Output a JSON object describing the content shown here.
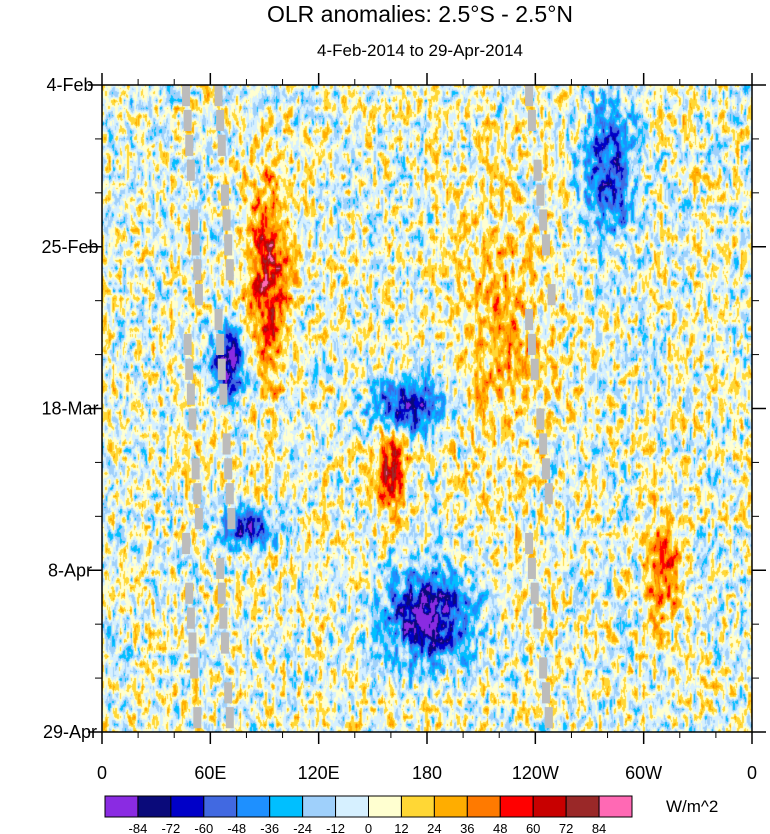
{
  "chart_data": {
    "type": "heatmap",
    "title": "OLR anomalies: 2.5°S - 2.5°N",
    "subtitle": "4-Feb-2014 to 29-Apr-2014",
    "x_tick_labels": [
      "0",
      "60E",
      "120E",
      "180",
      "120W",
      "60W",
      "0"
    ],
    "x_ticks_deg_east": [
      0,
      60,
      120,
      180,
      240,
      300,
      360
    ],
    "xlim_deg_east": [
      0,
      360
    ],
    "y_tick_labels": [
      "4-Feb",
      "25-Feb",
      "18-Mar",
      "8-Apr",
      "29-Apr"
    ],
    "y_ticks_dates": [
      "2014-02-04",
      "2014-02-25",
      "2014-03-18",
      "2014-04-08",
      "2014-04-29"
    ],
    "ylim_dates": [
      "2014-02-04",
      "2014-04-29"
    ],
    "y_reversed": true,
    "colorbar": {
      "units_label": "W/m^2",
      "levels": [
        -84,
        -72,
        -60,
        -48,
        -36,
        -24,
        -12,
        0,
        12,
        24,
        36,
        48,
        60,
        72,
        84
      ],
      "colors": [
        "#8a2be2",
        "#0a0a7a",
        "#0000c8",
        "#4169e1",
        "#1e90ff",
        "#00bfff",
        "#9fd0fb",
        "#d6f0ff",
        "#ffffd0",
        "#ffd735",
        "#ffad00",
        "#ff7a00",
        "#ff0000",
        "#c80000",
        "#9a2828",
        "#ff69b4"
      ]
    },
    "features": [
      {
        "kind": "positive anomaly",
        "lon_range": [
          80,
          105
        ],
        "dates": [
          "2014-02-15",
          "2014-03-14"
        ],
        "peak": 60
      },
      {
        "kind": "negative anomaly",
        "lon_range": [
          60,
          80
        ],
        "dates": [
          "2014-03-07",
          "2014-03-17"
        ],
        "peak": -84
      },
      {
        "kind": "negative anomaly",
        "lon_range": [
          150,
          190
        ],
        "dates": [
          "2014-03-14",
          "2014-03-21"
        ],
        "peak": -72
      },
      {
        "kind": "positive anomaly",
        "lon_range": [
          150,
          170
        ],
        "dates": [
          "2014-03-21",
          "2014-03-31"
        ],
        "peak": 60
      },
      {
        "kind": "negative anomaly",
        "lon_range": [
          65,
          95
        ],
        "dates": [
          "2014-03-31",
          "2014-04-05"
        ],
        "peak": -72
      },
      {
        "kind": "negative anomaly",
        "lon_range": [
          155,
          205
        ],
        "dates": [
          "2014-04-08",
          "2014-04-20"
        ],
        "peak": -84
      },
      {
        "kind": "positive anomaly",
        "lon_range": [
          190,
          250
        ],
        "dates": [
          "2014-02-18",
          "2014-03-25"
        ],
        "peak": 24
      },
      {
        "kind": "negative anomaly",
        "lon_range": [
          265,
          295
        ],
        "dates": [
          "2014-02-05",
          "2014-02-25"
        ],
        "peak": -60
      },
      {
        "kind": "positive anomaly",
        "lon_range": [
          300,
          320
        ],
        "dates": [
          "2014-03-31",
          "2014-04-15"
        ],
        "peak": 48
      }
    ],
    "missing_data_bands_deg_east": [
      [
        46,
        54
      ],
      [
        64,
        72
      ],
      [
        236,
        250
      ]
    ]
  }
}
